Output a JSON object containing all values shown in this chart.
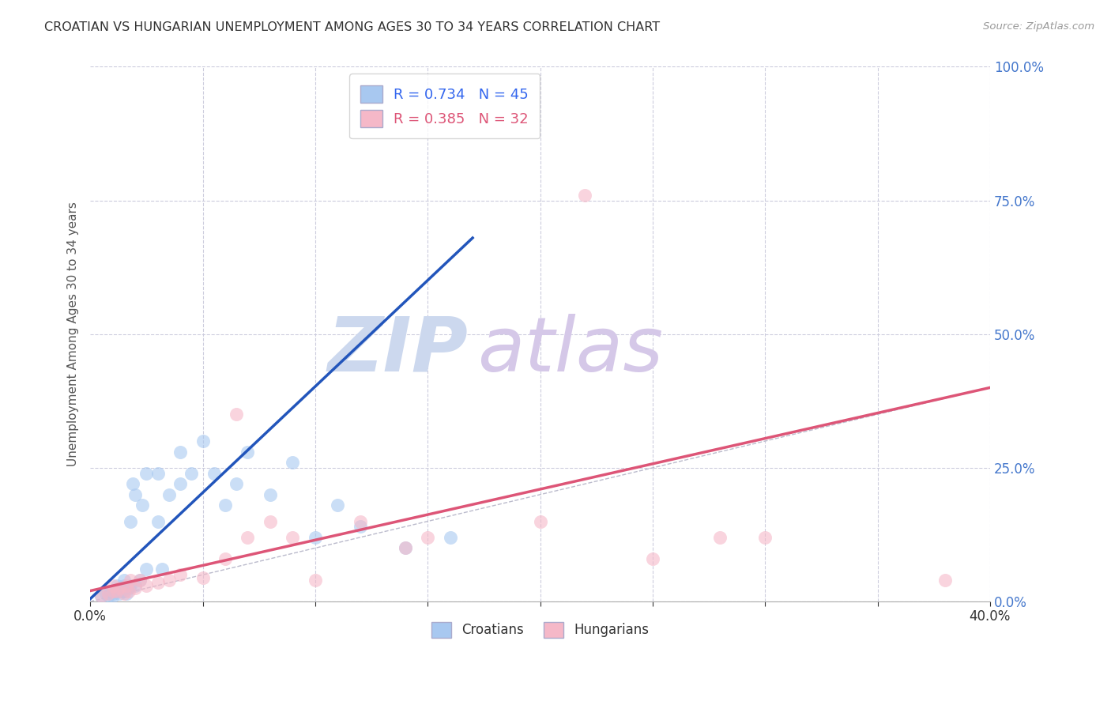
{
  "title": "CROATIAN VS HUNGARIAN UNEMPLOYMENT AMONG AGES 30 TO 34 YEARS CORRELATION CHART",
  "source": "Source: ZipAtlas.com",
  "ylabel": "Unemployment Among Ages 30 to 34 years",
  "xlim": [
    0.0,
    0.4
  ],
  "ylim": [
    0.0,
    1.0
  ],
  "xtick_positions": [
    0.0,
    0.05,
    0.1,
    0.15,
    0.2,
    0.25,
    0.3,
    0.35,
    0.4
  ],
  "xtick_labels": [
    "0.0%",
    "",
    "",
    "",
    "",
    "",
    "",
    "",
    "40.0%"
  ],
  "right_yticks": [
    0.0,
    0.25,
    0.5,
    0.75,
    1.0
  ],
  "right_ytick_labels": [
    "0.0%",
    "25.0%",
    "50.0%",
    "75.0%",
    "100.0%"
  ],
  "croatian_R": 0.734,
  "croatian_N": 45,
  "hungarian_R": 0.385,
  "hungarian_N": 32,
  "croatian_color": "#a8c8f0",
  "hungarian_color": "#f5b8c8",
  "croatian_line_color": "#2255bb",
  "hungarian_line_color": "#dd5577",
  "ref_line_color": "#bbbbcc",
  "title_color": "#333333",
  "axis_label_color": "#555555",
  "right_axis_color": "#4477cc",
  "watermark_zip_color": "#ccd8ee",
  "watermark_atlas_color": "#d5c8e8",
  "legend_color_blue": "#3366ee",
  "legend_color_pink": "#dd5577",
  "croatians_scatter_x": [
    0.005,
    0.007,
    0.008,
    0.009,
    0.01,
    0.01,
    0.01,
    0.012,
    0.012,
    0.013,
    0.013,
    0.014,
    0.015,
    0.015,
    0.015,
    0.016,
    0.017,
    0.018,
    0.018,
    0.019,
    0.02,
    0.02,
    0.022,
    0.023,
    0.025,
    0.025,
    0.03,
    0.03,
    0.032,
    0.035,
    0.04,
    0.04,
    0.045,
    0.05,
    0.055,
    0.06,
    0.065,
    0.07,
    0.08,
    0.09,
    0.1,
    0.11,
    0.12,
    0.14,
    0.16
  ],
  "croatians_scatter_y": [
    0.01,
    0.015,
    0.01,
    0.02,
    0.01,
    0.015,
    0.02,
    0.02,
    0.03,
    0.015,
    0.025,
    0.02,
    0.02,
    0.03,
    0.04,
    0.015,
    0.025,
    0.03,
    0.15,
    0.22,
    0.03,
    0.2,
    0.04,
    0.18,
    0.06,
    0.24,
    0.15,
    0.24,
    0.06,
    0.2,
    0.22,
    0.28,
    0.24,
    0.3,
    0.24,
    0.18,
    0.22,
    0.28,
    0.2,
    0.26,
    0.12,
    0.18,
    0.14,
    0.1,
    0.12
  ],
  "hungarians_scatter_x": [
    0.005,
    0.008,
    0.01,
    0.01,
    0.012,
    0.013,
    0.015,
    0.016,
    0.017,
    0.018,
    0.02,
    0.022,
    0.025,
    0.03,
    0.035,
    0.04,
    0.05,
    0.06,
    0.065,
    0.07,
    0.08,
    0.09,
    0.1,
    0.12,
    0.14,
    0.15,
    0.2,
    0.22,
    0.25,
    0.28,
    0.3,
    0.38
  ],
  "hungarians_scatter_y": [
    0.01,
    0.015,
    0.02,
    0.03,
    0.02,
    0.025,
    0.015,
    0.03,
    0.02,
    0.04,
    0.025,
    0.04,
    0.03,
    0.035,
    0.04,
    0.05,
    0.045,
    0.08,
    0.35,
    0.12,
    0.15,
    0.12,
    0.04,
    0.15,
    0.1,
    0.12,
    0.15,
    0.76,
    0.08,
    0.12,
    0.12,
    0.04
  ],
  "croatian_trendline_x": [
    0.0,
    0.17
  ],
  "croatian_trendline_y": [
    0.005,
    0.68
  ],
  "hungarian_trendline_x": [
    0.0,
    0.4
  ],
  "hungarian_trendline_y": [
    0.02,
    0.4
  ],
  "ref_line_x": [
    0.0,
    1.0
  ],
  "ref_line_y": [
    0.0,
    1.0
  ]
}
